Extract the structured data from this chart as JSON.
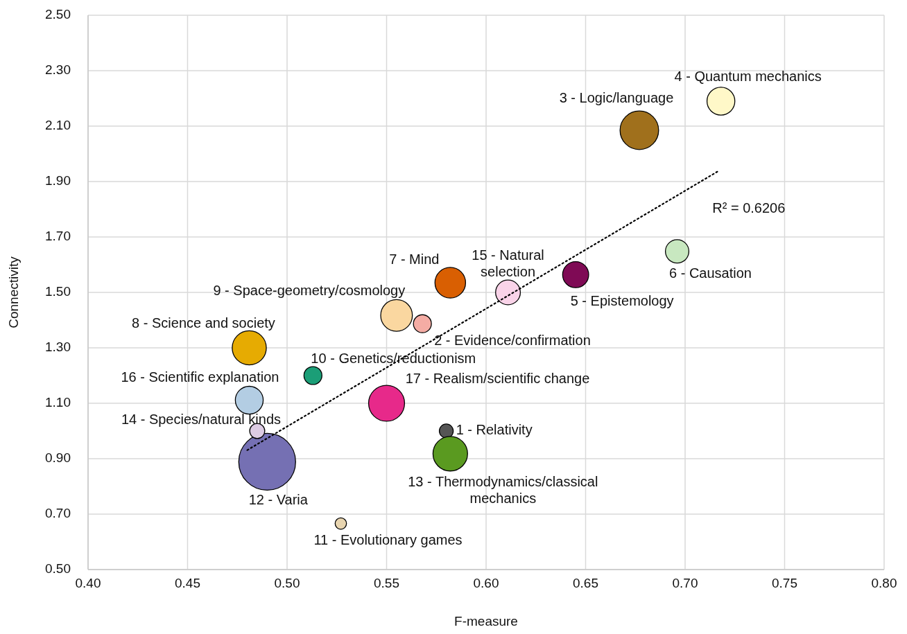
{
  "chart_data": {
    "type": "bubble",
    "xlabel": "F-measure",
    "ylabel": "Connectivity",
    "xlim": [
      0.4,
      0.8
    ],
    "ylim": [
      0.5,
      2.5
    ],
    "xticks": [
      {
        "value": 0.4,
        "label": "0.40"
      },
      {
        "value": 0.45,
        "label": "0.45"
      },
      {
        "value": 0.5,
        "label": "0.50"
      },
      {
        "value": 0.55,
        "label": "0.55"
      },
      {
        "value": 0.6,
        "label": "0.60"
      },
      {
        "value": 0.65,
        "label": "0.65"
      },
      {
        "value": 0.7,
        "label": "0.70"
      },
      {
        "value": 0.75,
        "label": "0.75"
      },
      {
        "value": 0.8,
        "label": "0.80"
      }
    ],
    "yticks": [
      {
        "value": 0.5,
        "label": "0.50"
      },
      {
        "value": 0.7,
        "label": "0.70"
      },
      {
        "value": 0.9,
        "label": "0.90"
      },
      {
        "value": 1.1,
        "label": "1.10"
      },
      {
        "value": 1.3,
        "label": "1.30"
      },
      {
        "value": 1.5,
        "label": "1.50"
      },
      {
        "value": 1.7,
        "label": "1.70"
      },
      {
        "value": 1.9,
        "label": "1.90"
      },
      {
        "value": 2.1,
        "label": "2.10"
      },
      {
        "value": 2.3,
        "label": "2.30"
      },
      {
        "value": 2.5,
        "label": "2.50"
      }
    ],
    "grid": true,
    "annotations": [
      "R² = 0.6206"
    ],
    "series": [
      {
        "name": "1 - Relativity",
        "color": "#555555",
        "x": [
          0.58
        ],
        "values": [
          1.0
        ],
        "sizes": [
          0.06
        ]
      },
      {
        "name": "2 - Evidence/confirmation",
        "color": "#f4aca4",
        "x": [
          0.568
        ],
        "values": [
          1.387
        ],
        "sizes": [
          0.1
        ]
      },
      {
        "name": "3 - Logic/language",
        "color": "#a0701c",
        "x": [
          0.677
        ],
        "values": [
          2.085
        ],
        "sizes": [
          0.46
        ]
      },
      {
        "name": "4 - Quantum mechanics",
        "color": "#fff8c8",
        "x": [
          0.718
        ],
        "values": [
          2.19
        ],
        "sizes": [
          0.24
        ]
      },
      {
        "name": "5 - Epistemology",
        "color": "#7f0a55",
        "x": [
          0.645
        ],
        "values": [
          1.564
        ],
        "sizes": [
          0.21
        ]
      },
      {
        "name": "6 - Causation",
        "color": "#c8e8c0",
        "x": [
          0.696
        ],
        "values": [
          1.648
        ],
        "sizes": [
          0.17
        ]
      },
      {
        "name": "7 - Mind",
        "color": "#d95f02",
        "x": [
          0.582
        ],
        "values": [
          1.535
        ],
        "sizes": [
          0.29
        ]
      },
      {
        "name": "8 - Science and society",
        "color": "#e6ab02",
        "x": [
          0.481
        ],
        "values": [
          1.3
        ],
        "sizes": [
          0.36
        ]
      },
      {
        "name": "9 - Space-geometry/cosmology",
        "color": "#fad7a0",
        "x": [
          0.555
        ],
        "values": [
          1.417
        ],
        "sizes": [
          0.31
        ]
      },
      {
        "name": "10 - Genetics/reductionism",
        "color": "#1b9e77",
        "x": [
          0.513
        ],
        "values": [
          1.2
        ],
        "sizes": [
          0.1
        ]
      },
      {
        "name": "11 - Evolutionary games",
        "color": "#e8d5b0",
        "x": [
          0.527
        ],
        "values": [
          0.666
        ],
        "sizes": [
          0.04
        ]
      },
      {
        "name": "12 - Varia",
        "color": "#7570b3",
        "x": [
          0.49
        ],
        "values": [
          0.889
        ],
        "sizes": [
          1
        ]
      },
      {
        "name": "13 - Thermodynamics/classical mechanics",
        "color": "#5a9a20",
        "x": [
          0.582
        ],
        "values": [
          0.918
        ],
        "sizes": [
          0.37
        ]
      },
      {
        "name": "14 - Species/natural kinds",
        "color": "#dccbe3",
        "x": [
          0.485
        ],
        "values": [
          1.0
        ],
        "sizes": [
          0.07
        ]
      },
      {
        "name": "15 - Natural selection",
        "color": "#f9d3e8",
        "x": [
          0.611
        ],
        "values": [
          1.5
        ],
        "sizes": [
          0.19
        ]
      },
      {
        "name": "16 - Scientific explanation",
        "color": "#b3cde3",
        "x": [
          0.481
        ],
        "values": [
          1.111
        ],
        "sizes": [
          0.24
        ]
      },
      {
        "name": "17 - Realism/scientific change",
        "color": "#e7298a",
        "x": [
          0.55
        ],
        "values": [
          1.1
        ],
        "sizes": [
          0.4
        ]
      },
      {
        "type": "line",
        "color": "#000000",
        "x": [
          0.48,
          0.717
        ],
        "values": [
          0.931,
          1.939
        ],
        "line_style": "dotted",
        "marker": "none"
      }
    ]
  }
}
